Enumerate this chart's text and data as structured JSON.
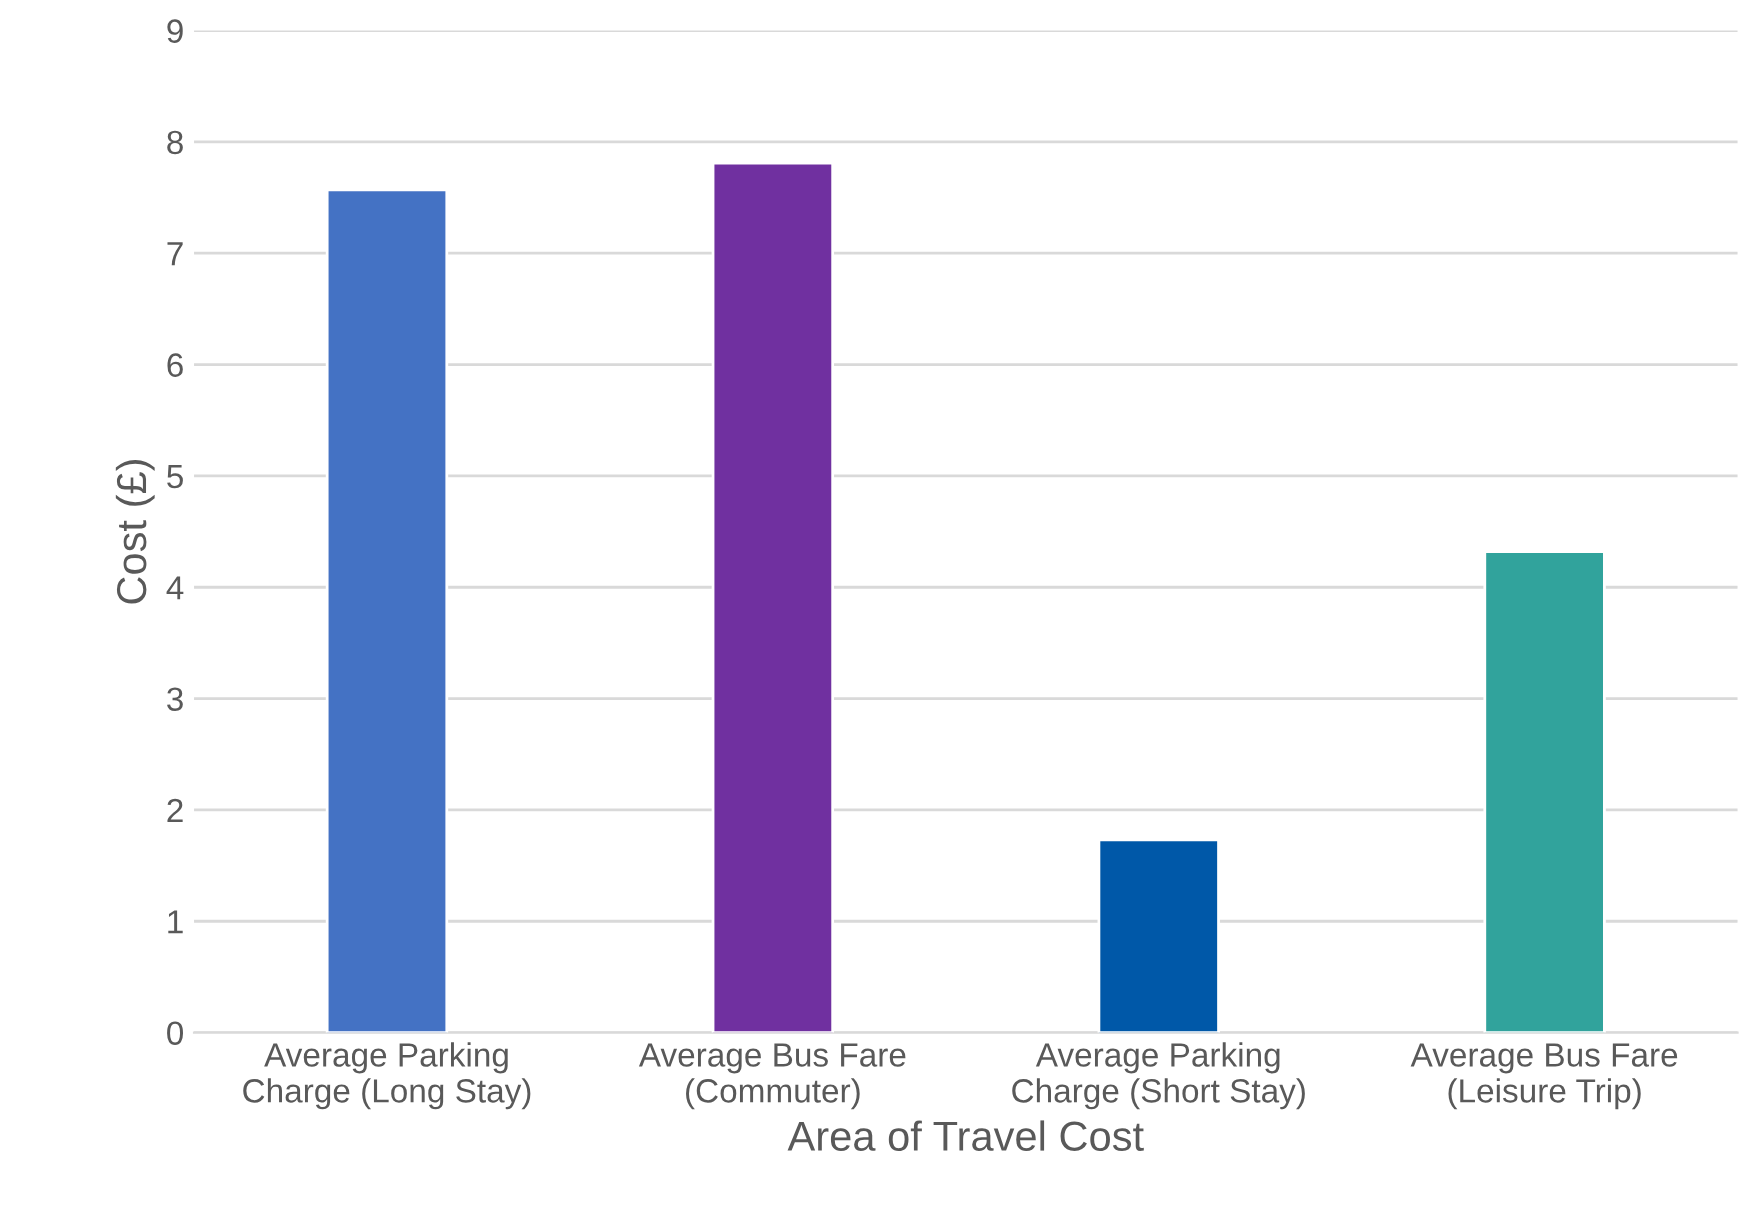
{
  "chart_data": {
    "type": "bar",
    "xlabel": "Area of Travel Cost",
    "ylabel": "Cost (£)",
    "categories": [
      "Average Parking\nCharge (Long Stay)",
      "Average Bus Fare\n(Commuter)",
      "Average Parking\nCharge (Short Stay)",
      "Average Bus Fare\n(Leisure Trip)"
    ],
    "values": [
      7.57,
      7.81,
      1.73,
      4.32
    ],
    "colors": [
      "#4472c4",
      "#7030a0",
      "#0058a8",
      "#31a39c"
    ],
    "ylim": [
      0,
      9
    ],
    "yticks": [
      0,
      1,
      2,
      3,
      4,
      5,
      6,
      7,
      8,
      9
    ],
    "grid": "y",
    "legend": false
  }
}
